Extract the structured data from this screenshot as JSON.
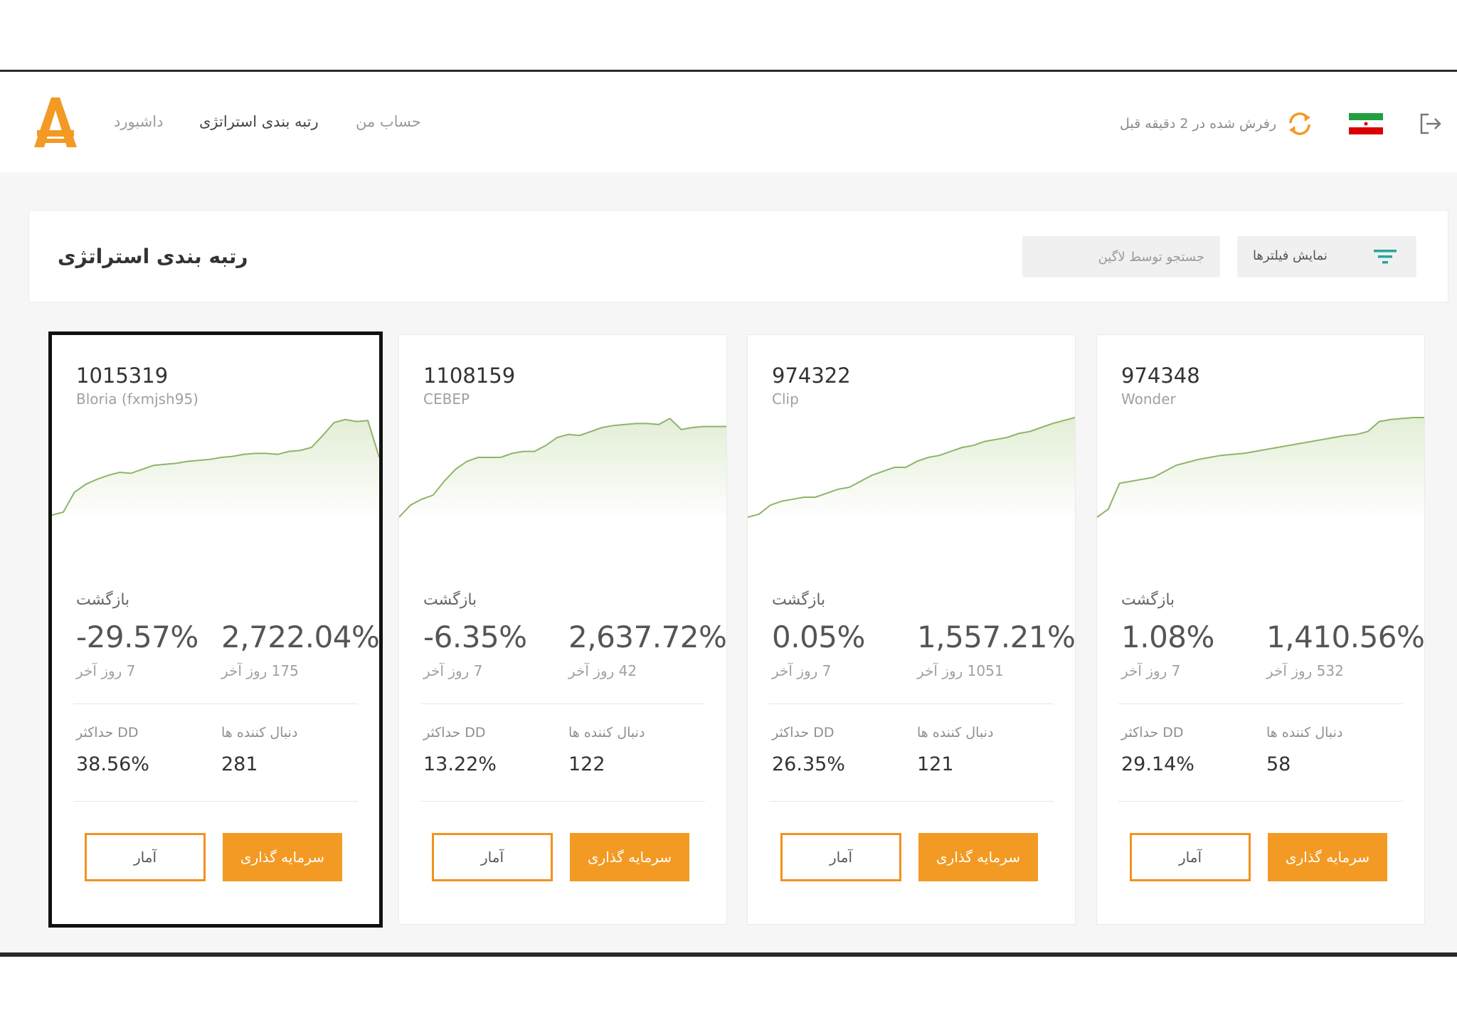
{
  "header": {
    "logo_icon": "amarkets-logo-icon",
    "nav": [
      {
        "label": "داشبورد"
      },
      {
        "label": "رتبه بندی استراتژی"
      },
      {
        "label": "حساب من"
      }
    ],
    "refresh_text": "رفرش شده در 2 دقیقه قبل",
    "refresh_icon": "refresh-icon",
    "flag_icon": "iran-flag-icon",
    "logout_icon": "logout-icon"
  },
  "panel": {
    "title": "رتبه بندی استراتژی",
    "search_placeholder": "جستجو توسط لاگین",
    "filter_label": "نمایش فیلترها",
    "filter_icon": "filter-icon"
  },
  "colors": {
    "accent": "#f39a24",
    "chart_line": "#8fb46a",
    "chart_fill": "#e3eed6"
  },
  "cards": [
    {
      "id": "1015319",
      "name": "Bloria (fxmjsh95)",
      "return_title": "بازگشت",
      "return_short": "-29.57%",
      "period_short": "7 روز آخر",
      "return_long": "2,722.04%",
      "period_long": "175 روز آخر",
      "dd_label": "حداکثر DD",
      "dd_value": "38.56%",
      "followers_label": "دنبال کننده ها",
      "followers_value": "281",
      "stats_label": "آمار",
      "invest_label": "سرمایه گذاری",
      "equity": [
        0.02,
        0.05,
        0.25,
        0.33,
        0.38,
        0.42,
        0.45,
        0.44,
        0.48,
        0.52,
        0.53,
        0.54,
        0.56,
        0.57,
        0.58,
        0.6,
        0.61,
        0.63,
        0.64,
        0.64,
        0.63,
        0.66,
        0.67,
        0.7,
        0.82,
        0.95,
        0.98,
        0.96,
        0.97,
        0.6
      ]
    },
    {
      "id": "1108159",
      "name": "СЕВЕР",
      "return_title": "بازگشت",
      "return_short": "-6.35%",
      "period_short": "7 روز آخر",
      "return_long": "2,637.72%",
      "period_long": "42 روز آخر",
      "dd_label": "حداکثر DD",
      "dd_value": "13.22%",
      "followers_label": "دنبال کننده ها",
      "followers_value": "122",
      "stats_label": "آمار",
      "invest_label": "سرمایه گذاری",
      "equity": [
        0.0,
        0.12,
        0.18,
        0.22,
        0.36,
        0.48,
        0.56,
        0.6,
        0.6,
        0.6,
        0.64,
        0.66,
        0.66,
        0.72,
        0.8,
        0.83,
        0.82,
        0.86,
        0.9,
        0.92,
        0.93,
        0.94,
        0.94,
        0.93,
        0.99,
        0.88,
        0.9,
        0.91,
        0.91,
        0.91
      ]
    },
    {
      "id": "974322",
      "name": "Clip",
      "return_title": "بازگشت",
      "return_short": "0.05%",
      "period_short": "7 روز آخر",
      "return_long": "1,557.21%",
      "period_long": "1051 روز آخر",
      "dd_label": "حداکثر DD",
      "dd_value": "26.35%",
      "followers_label": "دنبال کننده ها",
      "followers_value": "121",
      "stats_label": "آمار",
      "invest_label": "سرمایه گذاری",
      "equity": [
        0.0,
        0.03,
        0.12,
        0.16,
        0.18,
        0.2,
        0.2,
        0.24,
        0.28,
        0.3,
        0.36,
        0.42,
        0.46,
        0.5,
        0.5,
        0.56,
        0.6,
        0.62,
        0.66,
        0.7,
        0.72,
        0.76,
        0.78,
        0.8,
        0.84,
        0.86,
        0.9,
        0.94,
        0.97,
        1.0
      ]
    },
    {
      "id": "974348",
      "name": "Wonder",
      "return_title": "بازگشت",
      "return_short": "1.08%",
      "period_short": "7 روز آخر",
      "return_long": "1,410.56%",
      "period_long": "532 روز آخر",
      "dd_label": "حداکثر DD",
      "dd_value": "29.14%",
      "followers_label": "دنبال کننده ها",
      "followers_value": "58",
      "stats_label": "آمار",
      "invest_label": "سرمایه گذاری",
      "equity": [
        0.0,
        0.08,
        0.34,
        0.36,
        0.38,
        0.4,
        0.46,
        0.52,
        0.55,
        0.58,
        0.6,
        0.62,
        0.63,
        0.64,
        0.66,
        0.68,
        0.7,
        0.72,
        0.74,
        0.76,
        0.78,
        0.8,
        0.82,
        0.83,
        0.86,
        0.96,
        0.98,
        0.99,
        1.0,
        1.0
      ]
    }
  ]
}
